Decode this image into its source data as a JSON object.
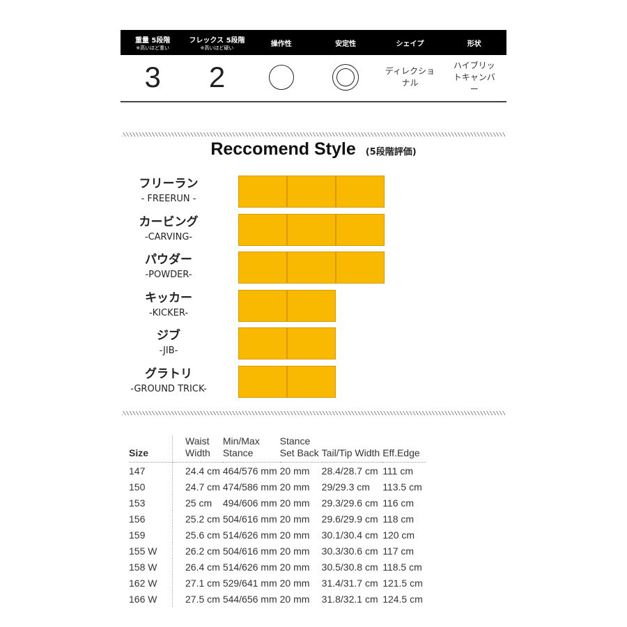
{
  "spec": {
    "headers": [
      {
        "label": "重量 5段階",
        "sub": "※高いほど重い"
      },
      {
        "label": "フレックス 5段階",
        "sub": "※高いほど硬い"
      },
      {
        "label": "操作性",
        "sub": ""
      },
      {
        "label": "安定性",
        "sub": ""
      },
      {
        "label": "シェイプ",
        "sub": ""
      },
      {
        "label": "形状",
        "sub": ""
      }
    ],
    "weight": "3",
    "flex": "2",
    "handling": "circle",
    "stability": "double-circle",
    "shape": "ディレクショナル",
    "profile": "ハイブリットキャンバー"
  },
  "recommend": {
    "title": "Reccomend Style",
    "note": "(5段階評価)",
    "bar_color": "#f9b900",
    "max": 5,
    "items": [
      {
        "jp": "フリーラン",
        "en": "- FREERUN -",
        "rating": 3
      },
      {
        "jp": "カービング",
        "en": "-CARVING-",
        "rating": 3
      },
      {
        "jp": "パウダー",
        "en": "-POWDER-",
        "rating": 3
      },
      {
        "jp": "キッカー",
        "en": "-KICKER-",
        "rating": 2
      },
      {
        "jp": "ジブ",
        "en": "-JIB-",
        "rating": 2
      },
      {
        "jp": "グラトリ",
        "en": "-GROUND TRICK-",
        "rating": 2
      }
    ]
  },
  "table": {
    "headers": [
      "Size",
      "Waist\nWidth",
      "Min/Max\nStance",
      "Stance\nSet Back",
      "Tail/Tip Width",
      "Eff.Edge"
    ],
    "rows": [
      [
        "147",
        "24.4 cm",
        "464/576 mm",
        "20 mm",
        "28.4/28.7 cm",
        "111 cm"
      ],
      [
        "150",
        "24.7 cm",
        "474/586 mm",
        "20 mm",
        "29/29.3 cm",
        "113.5 cm"
      ],
      [
        "153",
        "25 cm",
        "494/606 mm",
        "20 mm",
        "29.3/29.6 cm",
        "116 cm"
      ],
      [
        "156",
        "25.2 cm",
        "504/616 mm",
        "20 mm",
        "29.6/29.9 cm",
        "118 cm"
      ],
      [
        "159",
        "25.6 cm",
        "514/626 mm",
        "20 mm",
        "30.1/30.4 cm",
        "120 cm"
      ],
      [
        "155 W",
        "26.2 cm",
        "504/616 mm",
        "20 mm",
        "30.3/30.6 cm",
        "117 cm"
      ],
      [
        "158 W",
        "26.4 cm",
        "514/626 mm",
        "20 mm",
        "30.5/30.8 cm",
        "118.5 cm"
      ],
      [
        "162 W",
        "27.1 cm",
        "529/641 mm",
        "20 mm",
        "31.4/31.7 cm",
        "121.5 cm"
      ],
      [
        "166 W",
        "27.5 cm",
        "544/656 mm",
        "20 mm",
        "31.8/32.1 cm",
        "124.5 cm"
      ]
    ]
  }
}
